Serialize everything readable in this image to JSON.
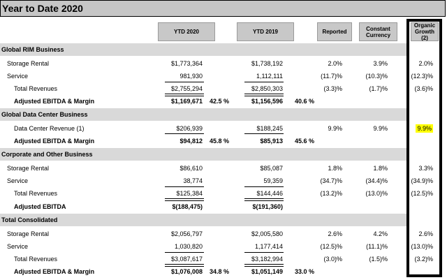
{
  "title": "Year to Date 2020",
  "headers": {
    "ytd2020": "YTD 2020",
    "ytd2019": "YTD 2019",
    "reported": "Reported",
    "constant": [
      "Constant",
      "Currency"
    ],
    "organic": [
      "Organic",
      "Growth (2)"
    ]
  },
  "sections": {
    "rim": {
      "title": "Global RIM Business",
      "rows": [
        {
          "label": "Storage Rental",
          "ytd2020": "$1,773,364",
          "ytd2019": "$1,738,192",
          "reported": "2.0%",
          "constant": "3.9%",
          "organic": "2.0%"
        },
        {
          "label": "Service",
          "ytd2020": "981,930",
          "ytd2019": "1,112,111",
          "reported": "(11.7)%",
          "constant": "(10.3)%",
          "organic": "(12.3)%"
        },
        {
          "label": "Total Revenues",
          "ytd2020": "$2,755,294",
          "ytd2019": "$2,850,303",
          "reported": "(3.3)%",
          "constant": "(1.7)%",
          "organic": "(3.6)%"
        }
      ],
      "ebitda": {
        "label": "Adjusted EBITDA & Margin",
        "ytd2020": "$1,169,671",
        "margin2020": "42.5 %",
        "ytd2019": "$1,156,596",
        "margin2019": "40.6 %"
      }
    },
    "dc": {
      "title": "Global Data Center Business",
      "rows": [
        {
          "label": "Data Center Revenue (1)",
          "ytd2020": "$206,939",
          "ytd2019": "$188,245",
          "reported": "9.9%",
          "constant": "9.9%",
          "organic": "9.9%"
        }
      ],
      "ebitda": {
        "label": "Adjusted EBITDA & Margin",
        "ytd2020": "$94,812",
        "margin2020": "45.8 %",
        "ytd2019": "$85,913",
        "margin2019": "45.6 %"
      }
    },
    "corp": {
      "title": "Corporate and Other Business",
      "rows": [
        {
          "label": "Storage Rental",
          "ytd2020": "$86,610",
          "ytd2019": "$85,087",
          "reported": "1.8%",
          "constant": "1.8%",
          "organic": "3.3%"
        },
        {
          "label": "Service",
          "ytd2020": "38,774",
          "ytd2019": "59,359",
          "reported": "(34.7)%",
          "constant": "(34.4)%",
          "organic": "(34.9)%"
        },
        {
          "label": "Total Revenues",
          "ytd2020": "$125,384",
          "ytd2019": "$144,446",
          "reported": "(13.2)%",
          "constant": "(13.0)%",
          "organic": "(12.5)%"
        }
      ],
      "ebitda": {
        "label": "Adjusted EBITDA",
        "ytd2020": "$(188,475)",
        "ytd2019": "$(191,360)"
      }
    },
    "total": {
      "title": "Total Consolidated",
      "rows": [
        {
          "label": "Storage Rental",
          "ytd2020": "$2,056,797",
          "ytd2019": "$2,005,580",
          "reported": "2.6%",
          "constant": "4.2%",
          "organic": "2.6%"
        },
        {
          "label": "Service",
          "ytd2020": "1,030,820",
          "ytd2019": "1,177,414",
          "reported": "(12.5)%",
          "constant": "(11.1)%",
          "organic": "(13.0)%"
        },
        {
          "label": "Total Revenues",
          "ytd2020": "$3,087,617",
          "ytd2019": "$3,182,994",
          "reported": "(3.0)%",
          "constant": "(1.5)%",
          "organic": "(3.2)%"
        }
      ],
      "ebitda": {
        "label": "Adjusted EBITDA & Margin",
        "ytd2020": "$1,076,008",
        "margin2020": "34.8 %",
        "ytd2019": "$1,051,149",
        "margin2019": "33.0 %"
      }
    }
  },
  "colors": {
    "highlight": "#ffff00",
    "header_bg": "#c8c8c8",
    "section_bg": "#d9d9d9"
  }
}
